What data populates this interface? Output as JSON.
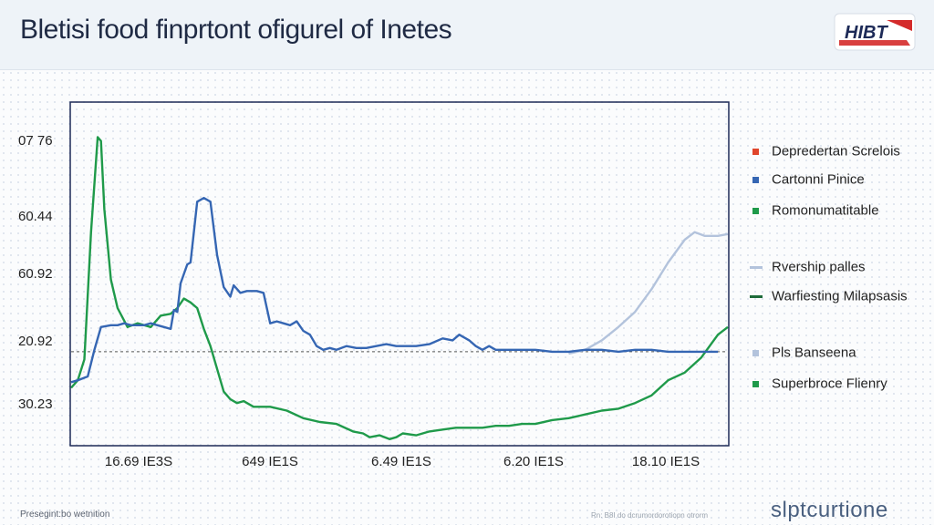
{
  "header": {
    "title": "Bletisi food finprtont ofigurel of Inetes",
    "logo_text": "HIBT"
  },
  "colors": {
    "series_blue": "#3566b3",
    "series_green": "#1f9a4a",
    "series_lightblue": "#b3c3dc",
    "legend_red": "#e0452b",
    "axis": "#1d2a57",
    "brand_red": "#d42a2a",
    "brand_navy": "#1d2a57"
  },
  "footer": {
    "left": "Presegint:bo wetnition",
    "mid": "Rn: B8I do dcrumordorotiopn otrorm",
    "right": "slptcurtione"
  },
  "chart_data": {
    "type": "line",
    "title": "Bletisi food finprtont ofigurel of Inetes",
    "y_tick_labels": [
      "07 76",
      "60.44",
      "60.92",
      "20.92",
      "30.23"
    ],
    "x_tick_labels": [
      "16.69 IE3S",
      "649 IE1S",
      "6.49 IE1S",
      "6.20 IE1S",
      "18.10 IE1S"
    ],
    "grid": false,
    "legend_position": "right",
    "legend": [
      {
        "label": "Depredertan Screlois",
        "marker": "square",
        "color": "#e0452b"
      },
      {
        "label": "Cartonni Pinice",
        "marker": "square",
        "color": "#3566b3"
      },
      {
        "label": "Romonumatitable",
        "marker": "square",
        "color": "#1f9a4a"
      },
      {
        "label": "Rvership palles",
        "marker": "line",
        "color": "#b3c3dc"
      },
      {
        "label": "Warfiesting Milapsasis",
        "marker": "line",
        "color": "#1d6b3a"
      },
      {
        "label": "Pls Banseena",
        "marker": "square",
        "color": "#b3c3dc"
      },
      {
        "label": "Superbroce Flienry",
        "marker": "square",
        "color": "#1f9a4a"
      }
    ],
    "series": [
      {
        "color": "#3566b3",
        "points": [
          [
            0,
            33
          ],
          [
            2,
            34
          ],
          [
            5,
            36
          ],
          [
            7,
            50
          ],
          [
            9,
            62
          ],
          [
            12,
            63
          ],
          [
            14,
            63
          ],
          [
            16,
            64
          ],
          [
            18,
            63
          ],
          [
            22,
            63
          ],
          [
            24,
            64
          ],
          [
            26,
            63
          ],
          [
            28,
            62
          ],
          [
            30,
            61
          ],
          [
            31,
            71
          ],
          [
            32,
            70
          ],
          [
            33,
            85
          ],
          [
            35,
            95
          ],
          [
            36,
            96
          ],
          [
            38,
            128
          ],
          [
            40,
            130
          ],
          [
            42,
            128
          ],
          [
            44,
            100
          ],
          [
            46,
            83
          ],
          [
            48,
            78
          ],
          [
            49,
            84
          ],
          [
            51,
            80
          ],
          [
            53,
            81
          ],
          [
            55,
            81
          ],
          [
            56,
            81
          ],
          [
            58,
            80
          ],
          [
            60,
            64
          ],
          [
            62,
            65
          ],
          [
            64,
            64
          ],
          [
            66,
            63
          ],
          [
            68,
            65
          ],
          [
            70,
            60
          ],
          [
            72,
            58
          ],
          [
            74,
            52
          ],
          [
            76,
            50
          ],
          [
            78,
            51
          ],
          [
            80,
            50
          ],
          [
            83,
            52
          ],
          [
            86,
            51
          ],
          [
            89,
            51
          ],
          [
            92,
            52
          ],
          [
            95,
            53
          ],
          [
            98,
            52
          ],
          [
            101,
            52
          ],
          [
            104,
            52
          ],
          [
            108,
            53
          ],
          [
            112,
            56
          ],
          [
            115,
            55
          ],
          [
            117,
            58
          ],
          [
            120,
            55
          ],
          [
            122,
            52
          ],
          [
            124,
            50
          ],
          [
            126,
            52
          ],
          [
            128,
            50
          ],
          [
            131,
            50
          ],
          [
            135,
            50
          ],
          [
            140,
            50
          ],
          [
            145,
            49
          ],
          [
            150,
            49
          ],
          [
            155,
            50
          ],
          [
            160,
            50
          ],
          [
            165,
            49
          ],
          [
            170,
            50
          ],
          [
            175,
            50
          ],
          [
            180,
            49
          ],
          [
            185,
            49
          ],
          [
            190,
            49
          ],
          [
            195,
            49
          ]
        ]
      },
      {
        "color": "#1f9a4a",
        "points": [
          [
            0,
            30
          ],
          [
            2,
            34
          ],
          [
            4,
            45
          ],
          [
            6,
            112
          ],
          [
            8,
            162
          ],
          [
            9,
            160
          ],
          [
            10,
            124
          ],
          [
            12,
            87
          ],
          [
            14,
            72
          ],
          [
            17,
            62
          ],
          [
            20,
            64
          ],
          [
            24,
            62
          ],
          [
            27,
            68
          ],
          [
            30,
            69
          ],
          [
            32,
            72
          ],
          [
            34,
            77
          ],
          [
            36,
            75
          ],
          [
            38,
            72
          ],
          [
            40,
            61
          ],
          [
            42,
            52
          ],
          [
            44,
            40
          ],
          [
            46,
            28
          ],
          [
            48,
            24
          ],
          [
            50,
            22
          ],
          [
            52,
            23
          ],
          [
            55,
            20
          ],
          [
            60,
            20
          ],
          [
            65,
            18
          ],
          [
            70,
            14
          ],
          [
            75,
            12
          ],
          [
            80,
            11
          ],
          [
            85,
            7
          ],
          [
            88,
            6
          ],
          [
            90,
            4
          ],
          [
            93,
            5
          ],
          [
            96,
            3
          ],
          [
            98,
            4
          ],
          [
            100,
            6
          ],
          [
            104,
            5
          ],
          [
            108,
            7
          ],
          [
            112,
            8
          ],
          [
            116,
            9
          ],
          [
            120,
            9
          ],
          [
            124,
            9
          ],
          [
            128,
            10
          ],
          [
            132,
            10
          ],
          [
            136,
            11
          ],
          [
            140,
            11
          ],
          [
            145,
            13
          ],
          [
            150,
            14
          ],
          [
            155,
            16
          ],
          [
            160,
            18
          ],
          [
            165,
            19
          ],
          [
            170,
            22
          ],
          [
            175,
            26
          ],
          [
            180,
            34
          ],
          [
            185,
            38
          ],
          [
            190,
            46
          ],
          [
            195,
            58
          ],
          [
            198,
            62
          ]
        ]
      },
      {
        "color": "#b3c3dc",
        "points": [
          [
            150,
            48
          ],
          [
            155,
            50
          ],
          [
            160,
            55
          ],
          [
            165,
            62
          ],
          [
            170,
            70
          ],
          [
            175,
            82
          ],
          [
            180,
            96
          ],
          [
            185,
            108
          ],
          [
            188,
            112
          ],
          [
            191,
            110
          ],
          [
            195,
            110
          ],
          [
            198,
            111
          ]
        ]
      }
    ],
    "reference_line_y": 49
  }
}
